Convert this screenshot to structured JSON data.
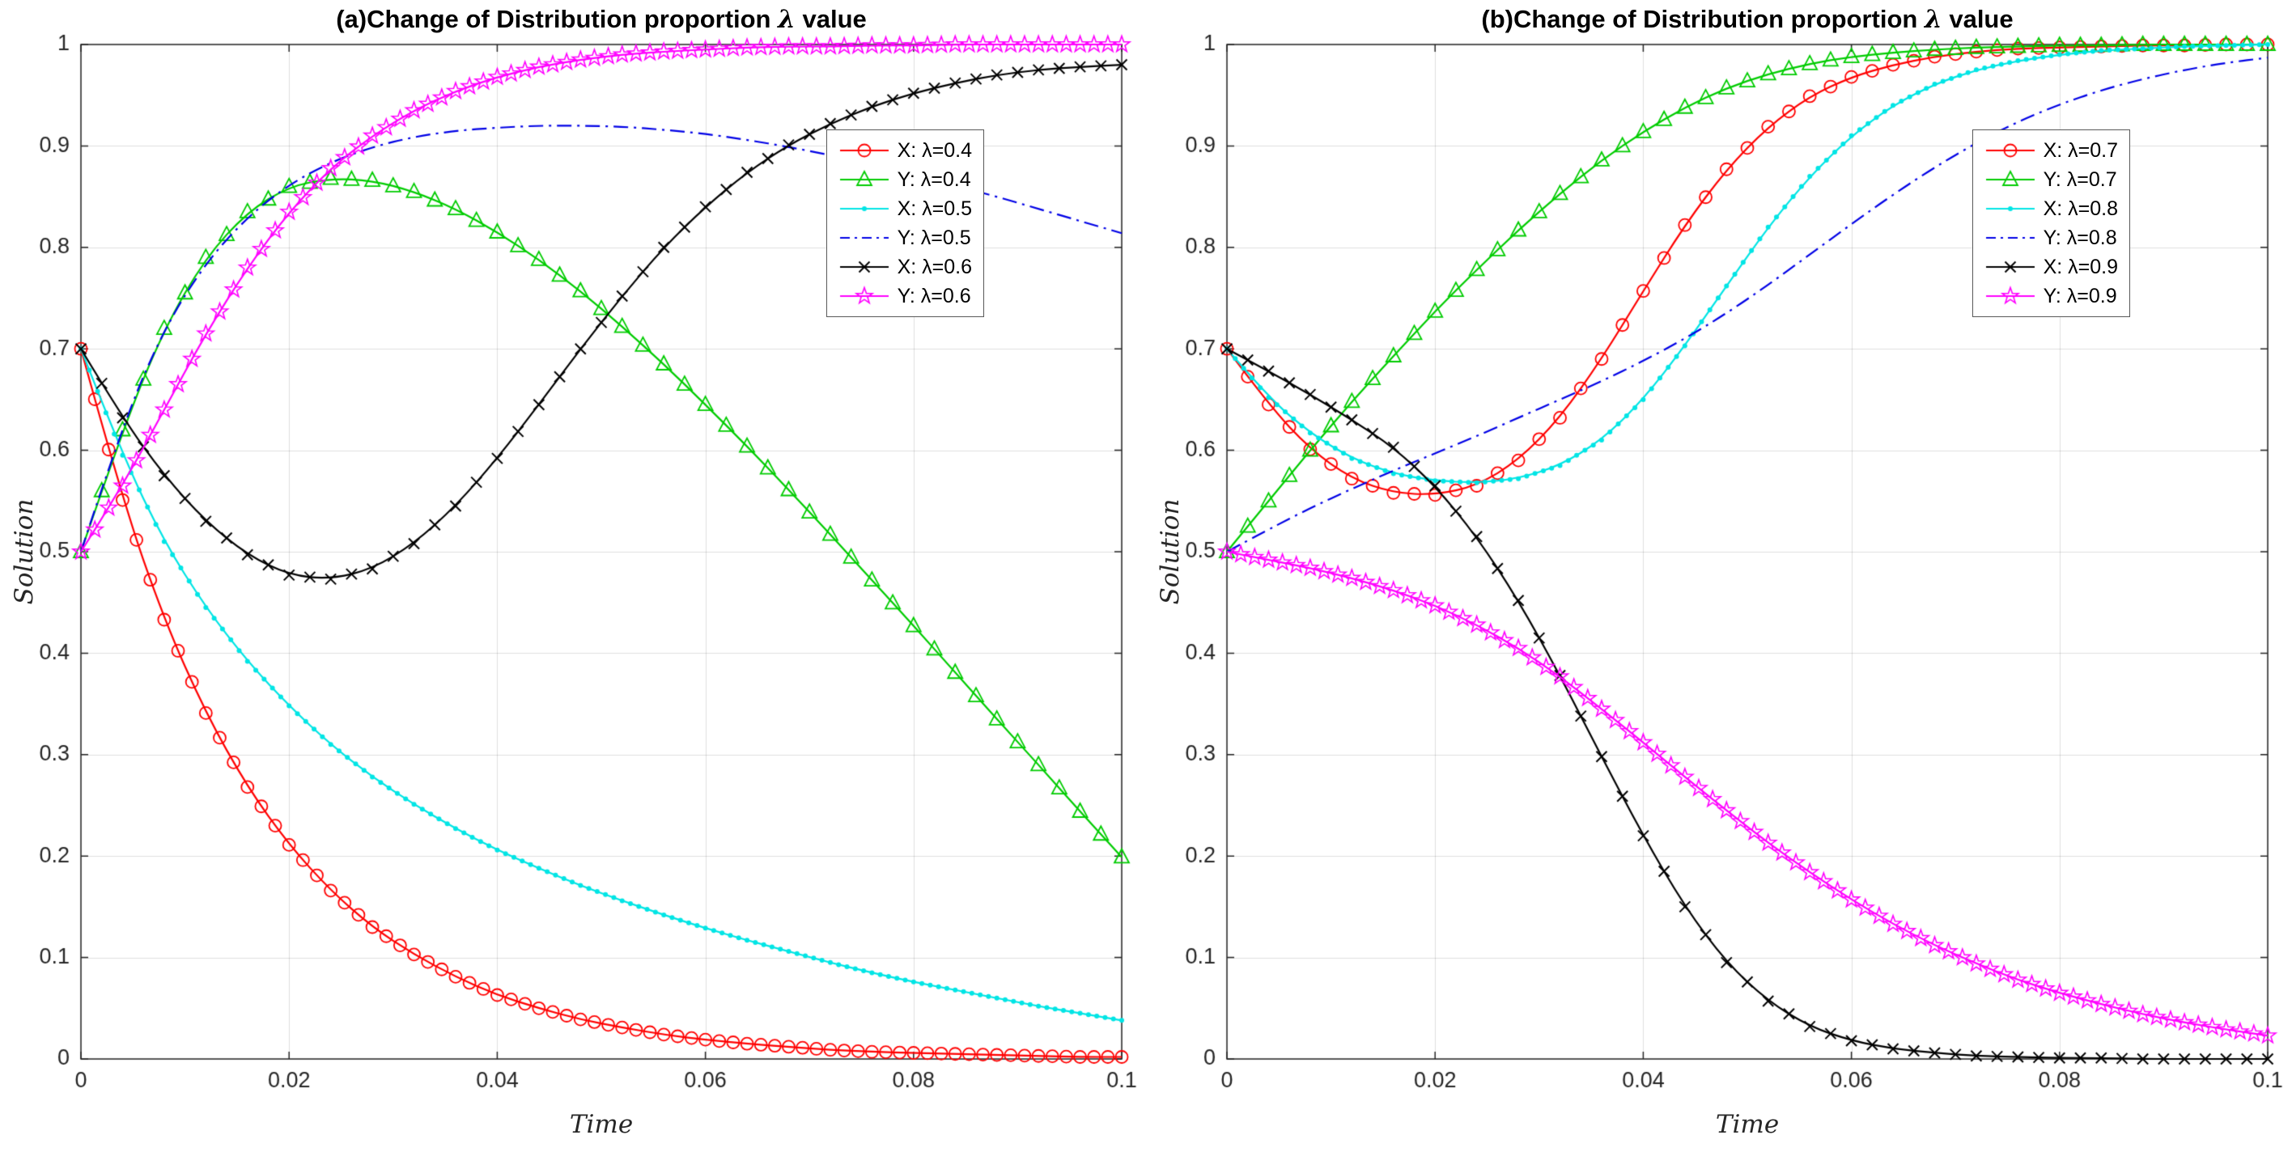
{
  "colors": {
    "axis": "#262626",
    "grid": "rgba(38,38,38,0.15)",
    "background": "#ffffff"
  },
  "chart_data": [
    {
      "type": "line",
      "title": "(a)Change of Distribution proportion λ value",
      "title_parts": {
        "prefix": "(a)Change of Distribution proportion ",
        "lambda": "λ",
        "suffix": " value"
      },
      "xlabel": "Time",
      "ylabel": "Solution",
      "xlim": [
        0,
        0.1
      ],
      "ylim": [
        0,
        1
      ],
      "xticks": [
        0,
        0.02,
        0.04,
        0.06,
        0.08,
        0.1
      ],
      "xtick_labels": [
        "0",
        "0.02",
        "0.04",
        "0.06",
        "0.08",
        "0.1"
      ],
      "yticks": [
        0,
        0.1,
        0.2,
        0.3,
        0.4,
        0.5,
        0.6,
        0.7,
        0.8,
        0.9,
        1
      ],
      "ytick_labels": [
        "0",
        "0.1",
        "0.2",
        "0.3",
        "0.4",
        "0.5",
        "0.6",
        "0.7",
        "0.8",
        "0.9",
        "1"
      ],
      "grid": true,
      "legend_position": "upper-right-inset",
      "x": [
        0,
        0.004,
        0.008,
        0.012,
        0.016,
        0.02,
        0.024,
        0.028,
        0.032,
        0.036,
        0.04,
        0.044,
        0.048,
        0.052,
        0.056,
        0.06,
        0.064,
        0.068,
        0.072,
        0.076,
        0.08,
        0.084,
        0.088,
        0.092,
        0.096,
        0.1
      ],
      "series": [
        {
          "name": "X: λ=0.4",
          "color": "#ff0000",
          "marker": "circle",
          "line": "solid",
          "marker_density": 3,
          "values": [
            0.7,
            0.551,
            0.433,
            0.341,
            0.268,
            0.211,
            0.166,
            0.13,
            0.103,
            0.081,
            0.063,
            0.05,
            0.039,
            0.031,
            0.024,
            0.019,
            0.015,
            0.012,
            0.009,
            0.007,
            0.006,
            0.005,
            0.004,
            0.003,
            0.002,
            0.002
          ]
        },
        {
          "name": "Y: λ=0.4",
          "color": "#00cc00",
          "marker": "triangle",
          "line": "solid",
          "marker_density": 2,
          "values": [
            0.5,
            0.62,
            0.72,
            0.79,
            0.835,
            0.86,
            0.868,
            0.866,
            0.855,
            0.838,
            0.815,
            0.788,
            0.757,
            0.722,
            0.685,
            0.645,
            0.604,
            0.561,
            0.517,
            0.472,
            0.427,
            0.381,
            0.335,
            0.29,
            0.244,
            0.199
          ]
        },
        {
          "name": "X: λ=0.5",
          "color": "#00e5e5",
          "marker": "dot",
          "line": "solid",
          "marker_density": 5,
          "values": [
            0.7,
            0.595,
            0.51,
            0.445,
            0.392,
            0.348,
            0.31,
            0.278,
            0.251,
            0.227,
            0.206,
            0.188,
            0.171,
            0.156,
            0.142,
            0.129,
            0.117,
            0.106,
            0.095,
            0.085,
            0.076,
            0.068,
            0.06,
            0.052,
            0.045,
            0.038
          ]
        },
        {
          "name": "Y: λ=0.5",
          "color": "#0000e6",
          "marker": "none",
          "line": "dashdot",
          "marker_density": 1,
          "values": [
            0.5,
            0.625,
            0.72,
            0.785,
            0.83,
            0.862,
            0.884,
            0.899,
            0.909,
            0.915,
            0.918,
            0.92,
            0.92,
            0.919,
            0.916,
            0.912,
            0.906,
            0.899,
            0.891,
            0.882,
            0.872,
            0.861,
            0.85,
            0.838,
            0.826,
            0.814
          ]
        },
        {
          "name": "X: λ=0.6",
          "color": "#000000",
          "marker": "x",
          "line": "solid",
          "marker_density": 2,
          "values": [
            0.7,
            0.632,
            0.575,
            0.53,
            0.497,
            0.477,
            0.473,
            0.483,
            0.508,
            0.545,
            0.592,
            0.645,
            0.7,
            0.752,
            0.8,
            0.84,
            0.874,
            0.901,
            0.922,
            0.939,
            0.952,
            0.962,
            0.97,
            0.975,
            0.978,
            0.98
          ]
        },
        {
          "name": "Y: λ=0.6",
          "color": "#ff00ff",
          "marker": "star",
          "line": "solid",
          "marker_density": 3,
          "values": [
            0.5,
            0.565,
            0.64,
            0.715,
            0.78,
            0.835,
            0.878,
            0.91,
            0.935,
            0.954,
            0.968,
            0.978,
            0.985,
            0.99,
            0.993,
            0.995,
            0.997,
            0.998,
            0.998,
            0.999,
            0.999,
            1,
            1,
            1,
            1,
            1
          ]
        }
      ]
    },
    {
      "type": "line",
      "title": "(b)Change of Distribution proportion λ value",
      "title_parts": {
        "prefix": "(b)Change of Distribution proportion ",
        "lambda": "λ",
        "suffix": " value"
      },
      "xlabel": "Time",
      "ylabel": "Solution",
      "xlim": [
        0,
        0.1
      ],
      "ylim": [
        0,
        1
      ],
      "xticks": [
        0,
        0.02,
        0.04,
        0.06,
        0.08,
        0.1
      ],
      "xtick_labels": [
        "0",
        "0.02",
        "0.04",
        "0.06",
        "0.08",
        "0.1"
      ],
      "yticks": [
        0,
        0.1,
        0.2,
        0.3,
        0.4,
        0.5,
        0.6,
        0.7,
        0.8,
        0.9,
        1
      ],
      "ytick_labels": [
        "0",
        "0.1",
        "0.2",
        "0.3",
        "0.4",
        "0.5",
        "0.6",
        "0.7",
        "0.8",
        "0.9",
        "1"
      ],
      "grid": true,
      "legend_position": "upper-right-inset",
      "x": [
        0,
        0.004,
        0.008,
        0.012,
        0.016,
        0.02,
        0.024,
        0.028,
        0.032,
        0.036,
        0.04,
        0.044,
        0.048,
        0.052,
        0.056,
        0.06,
        0.064,
        0.068,
        0.072,
        0.076,
        0.08,
        0.084,
        0.088,
        0.092,
        0.096,
        0.1
      ],
      "series": [
        {
          "name": "X: λ=0.7",
          "color": "#ff0000",
          "marker": "circle",
          "line": "solid",
          "marker_density": 2,
          "values": [
            0.7,
            0.645,
            0.601,
            0.572,
            0.558,
            0.556,
            0.565,
            0.59,
            0.632,
            0.69,
            0.757,
            0.822,
            0.877,
            0.919,
            0.949,
            0.968,
            0.98,
            0.988,
            0.993,
            0.996,
            0.997,
            0.998,
            0.999,
            0.999,
            1,
            1
          ]
        },
        {
          "name": "Y: λ=0.7",
          "color": "#00cc00",
          "marker": "triangle",
          "line": "solid",
          "marker_density": 2,
          "values": [
            0.5,
            0.55,
            0.6,
            0.648,
            0.693,
            0.737,
            0.778,
            0.817,
            0.853,
            0.886,
            0.914,
            0.938,
            0.957,
            0.971,
            0.981,
            0.988,
            0.992,
            0.995,
            0.997,
            0.998,
            0.999,
            0.999,
            1,
            1,
            1,
            1
          ]
        },
        {
          "name": "X: λ=0.8",
          "color": "#00e5e5",
          "marker": "dot",
          "line": "solid",
          "marker_density": 5,
          "values": [
            0.7,
            0.652,
            0.617,
            0.592,
            0.577,
            0.57,
            0.568,
            0.572,
            0.585,
            0.61,
            0.65,
            0.703,
            0.762,
            0.82,
            0.87,
            0.91,
            0.94,
            0.961,
            0.975,
            0.984,
            0.99,
            0.994,
            0.996,
            0.998,
            0.999,
            1
          ]
        },
        {
          "name": "Y: λ=0.8",
          "color": "#0000e6",
          "marker": "none",
          "line": "dashdot",
          "marker_density": 1,
          "values": [
            0.5,
            0.522,
            0.543,
            0.562,
            0.58,
            0.597,
            0.614,
            0.632,
            0.65,
            0.668,
            0.688,
            0.71,
            0.735,
            0.763,
            0.793,
            0.823,
            0.852,
            0.879,
            0.903,
            0.924,
            0.941,
            0.955,
            0.966,
            0.975,
            0.982,
            0.987
          ]
        },
        {
          "name": "X: λ=0.9",
          "color": "#000000",
          "marker": "x",
          "line": "solid",
          "marker_density": 2,
          "values": [
            0.7,
            0.678,
            0.655,
            0.63,
            0.603,
            0.565,
            0.515,
            0.452,
            0.378,
            0.298,
            0.22,
            0.15,
            0.095,
            0.057,
            0.032,
            0.018,
            0.01,
            0.006,
            0.003,
            0.002,
            0.001,
            0.001,
            0,
            0,
            0,
            0
          ]
        },
        {
          "name": "Y: λ=0.9",
          "color": "#ff00ff",
          "marker": "star",
          "line": "solid",
          "marker_density": 3,
          "values": [
            0.5,
            0.492,
            0.484,
            0.474,
            0.462,
            0.447,
            0.428,
            0.405,
            0.377,
            0.345,
            0.312,
            0.278,
            0.245,
            0.213,
            0.184,
            0.157,
            0.133,
            0.112,
            0.094,
            0.078,
            0.065,
            0.054,
            0.044,
            0.036,
            0.029,
            0.023
          ]
        }
      ]
    }
  ]
}
